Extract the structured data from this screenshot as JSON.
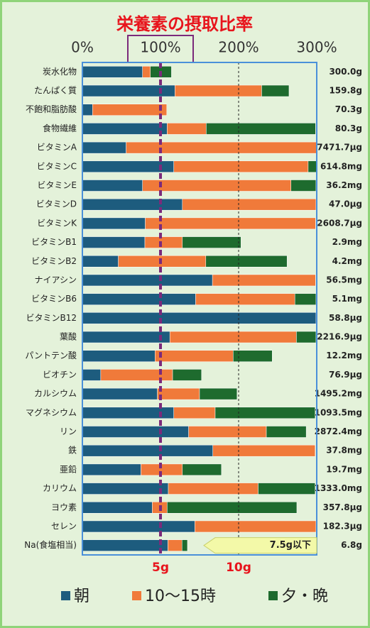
{
  "chart_data": {
    "type": "stacked_barh",
    "title": "栄養素の摂取比率",
    "categories": [
      "炭水化物",
      "たんぱく質",
      "不飽和脂肪酸",
      "食物繊維",
      "ビタミンA",
      "ビタミンC",
      "ビタミンE",
      "ビタミンD",
      "ビタミンK",
      "ビタミンB1",
      "ビタミンB2",
      "ナイアシン",
      "ビタミンB6",
      "ビタミンB12",
      "葉酸",
      "パントテン酸",
      "ビオチン",
      "カルシウム",
      "マグネシウム",
      "リン",
      "鉄",
      "亜鉛",
      "カリウム",
      "ヨウ素",
      "セレン",
      "Na(食塩相当)"
    ],
    "amounts": [
      "300.0g",
      "159.8g",
      "70.3g",
      "80.3g",
      "7471.7μg",
      "614.8mg",
      "36.2mg",
      "47.0μg",
      "2608.7μg",
      "2.9mg",
      "4.2mg",
      "56.5mg",
      "5.1mg",
      "58.8μg",
      "2216.9μg",
      "12.2mg",
      "76.9μg",
      "1495.2mg",
      "1093.5mg",
      "2872.4mg",
      "37.8mg",
      "19.7mg",
      "1333.0mg",
      "357.8μg",
      "182.3μg",
      "6.8g"
    ],
    "series": [
      {
        "name": "朝",
        "color": "#1d5c7e",
        "values": [
          77,
          118.5,
          13,
          108.5,
          56,
          117,
          77,
          128,
          80.5,
          80,
          46,
          166.5,
          145,
          299,
          112,
          93,
          23.5,
          96,
          117,
          136,
          167,
          75,
          110,
          89.5,
          144,
          109.5
        ]
      },
      {
        "name": "10～15時",
        "color": "#f07a3a",
        "values": [
          10,
          111,
          95,
          50,
          244,
          172,
          190,
          171,
          218,
          48,
          112,
          132,
          127,
          0,
          162,
          100,
          92,
          54,
          53,
          99.5,
          131,
          53,
          115,
          19,
          155,
          18
        ]
      },
      {
        "name": "夕・晩",
        "color": "#1e6b2e",
        "values": [
          27,
          35,
          0,
          140,
          0,
          11,
          32,
          0,
          0,
          75,
          104,
          0,
          27,
          0,
          25,
          50,
          37,
          48,
          128,
          51,
          0,
          50,
          73,
          166,
          0,
          7
        ]
      }
    ],
    "xlim": [
      0,
      300
    ],
    "xticks": [
      {
        "value": 0,
        "label": "0%"
      },
      {
        "value": 100,
        "label": "100%"
      },
      {
        "value": 200,
        "label": "200%"
      },
      {
        "value": 300,
        "label": "300%"
      }
    ],
    "x2lim": [
      0,
      15
    ],
    "x2ticks": [
      {
        "value": 5,
        "label": "5g"
      },
      {
        "value": 10,
        "label": "10g"
      }
    ],
    "reference_line": 100,
    "annotation": "7.5g以下"
  }
}
